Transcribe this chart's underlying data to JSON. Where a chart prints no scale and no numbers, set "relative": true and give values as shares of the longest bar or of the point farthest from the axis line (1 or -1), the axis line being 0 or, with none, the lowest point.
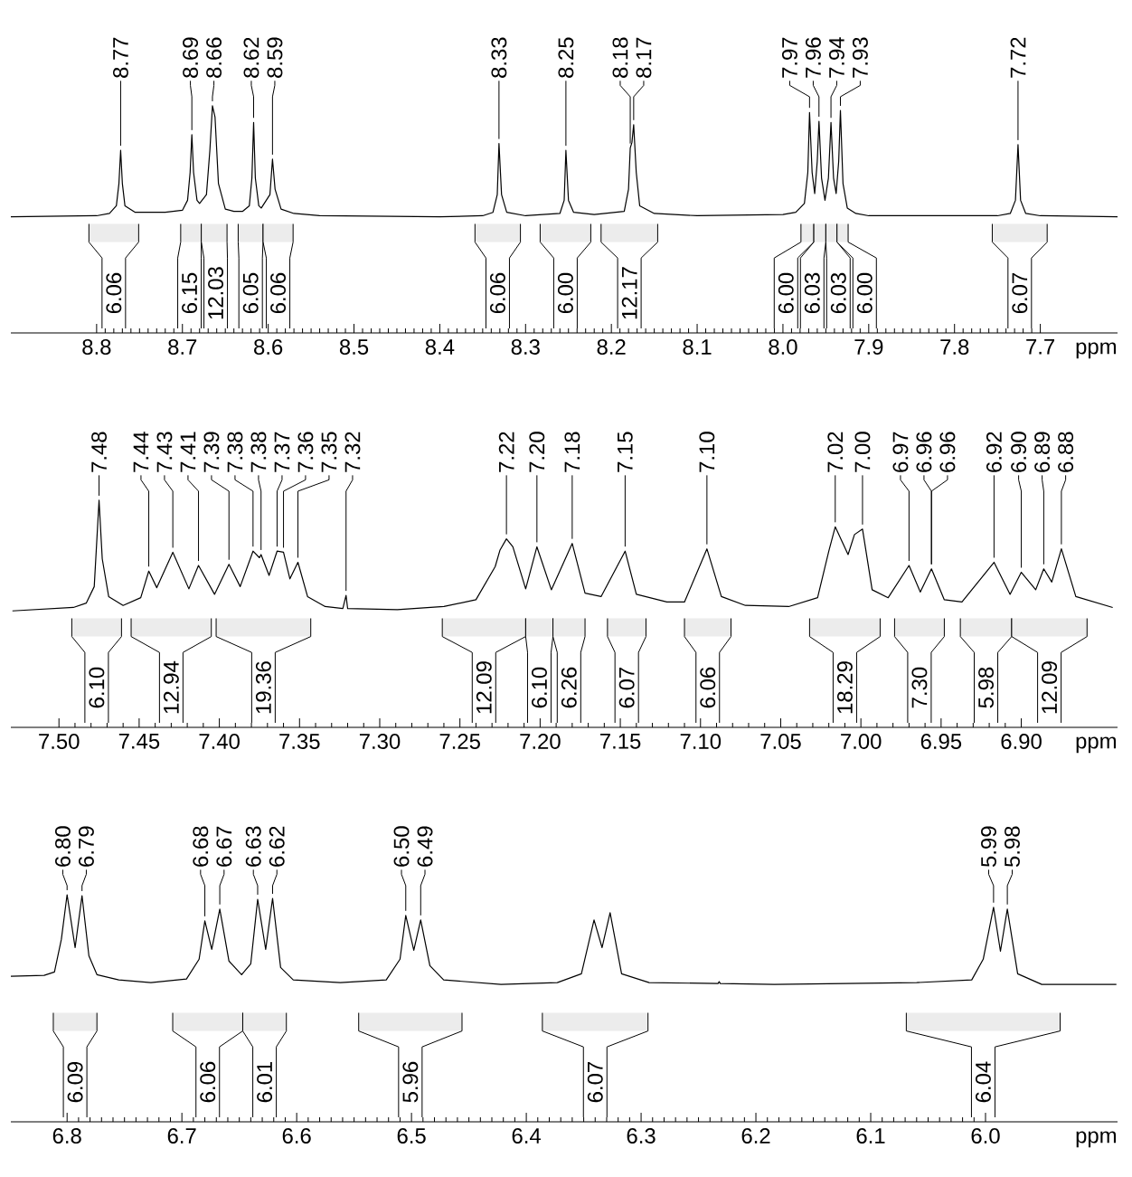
{
  "chart_data": [
    {
      "type": "line",
      "relative": true,
      "color": "#000000",
      "xlabel": "ppm",
      "xlim": [
        8.9,
        7.61
      ],
      "xticks": [
        8.8,
        8.7,
        8.6,
        8.5,
        8.4,
        8.3,
        8.2,
        8.1,
        {
          "value": 8,
          "label": "8.0"
        },
        7.9,
        7.8,
        7.7
      ],
      "x": [
        8.9,
        8.8,
        8.785,
        8.777,
        8.774,
        8.772,
        8.77,
        8.767,
        8.755,
        8.72,
        8.7,
        8.694,
        8.691,
        8.689,
        8.687,
        8.683,
        8.68,
        8.672,
        8.668,
        8.665,
        8.662,
        8.658,
        8.65,
        8.64,
        8.63,
        8.622,
        8.619,
        8.617,
        8.615,
        8.611,
        8.608,
        8.598,
        8.595,
        8.592,
        8.585,
        8.57,
        8.54,
        8.4,
        8.35,
        8.338,
        8.333,
        8.331,
        8.328,
        8.322,
        8.3,
        8.26,
        8.255,
        8.253,
        8.25,
        8.244,
        8.22,
        8.185,
        8.18,
        8.178,
        8.176,
        8.174,
        8.171,
        8.167,
        8.15,
        8.1,
        8.0,
        7.985,
        7.975,
        7.971,
        7.969,
        7.966,
        7.963,
        7.96,
        7.958,
        7.955,
        7.951,
        7.947,
        7.944,
        7.941,
        7.938,
        7.935,
        7.933,
        7.93,
        7.925,
        7.915,
        7.9,
        7.75,
        7.735,
        7.729,
        7.726,
        7.723,
        7.717,
        7.7,
        7.61
      ],
      "values": [
        0.511,
        0.516,
        0.526,
        0.56,
        0.658,
        0.804,
        0.658,
        0.56,
        0.531,
        0.531,
        0.54,
        0.584,
        0.707,
        0.873,
        0.707,
        0.584,
        0.57,
        0.609,
        0.804,
        1.0,
        0.951,
        0.658,
        0.545,
        0.535,
        0.535,
        0.56,
        0.682,
        0.927,
        0.682,
        0.56,
        0.55,
        0.609,
        0.765,
        0.633,
        0.545,
        0.526,
        0.516,
        0.511,
        0.516,
        0.531,
        0.609,
        0.834,
        0.609,
        0.531,
        0.516,
        0.526,
        0.584,
        0.804,
        0.584,
        0.531,
        0.521,
        0.535,
        0.633,
        0.814,
        0.839,
        0.917,
        0.707,
        0.56,
        0.526,
        0.516,
        0.521,
        0.531,
        0.57,
        0.707,
        0.971,
        0.707,
        0.614,
        0.756,
        0.932,
        0.682,
        0.584,
        0.682,
        0.927,
        0.682,
        0.614,
        0.756,
        0.98,
        0.658,
        0.55,
        0.526,
        0.516,
        0.516,
        0.526,
        0.584,
        0.829,
        0.584,
        0.526,
        0.516,
        0.511
      ],
      "annotations": [
        {
          "text": "8.77",
          "x": 8.772,
          "y": 0.804
        },
        {
          "text": "8.69",
          "x": 8.689,
          "y": 0.873
        },
        {
          "text": "8.66",
          "x": 8.665,
          "y": 1.0
        },
        {
          "text": "8.62",
          "x": 8.617,
          "y": 0.927
        },
        {
          "text": "8.59",
          "x": 8.595,
          "y": 0.765
        },
        {
          "text": "8.33",
          "x": 8.331,
          "y": 0.834
        },
        {
          "text": "8.25",
          "x": 8.253,
          "y": 0.804
        },
        {
          "text": "8.18",
          "x": 8.178,
          "y": 0.814
        },
        {
          "text": "8.17",
          "x": 8.174,
          "y": 0.917
        },
        {
          "text": "7.97",
          "x": 7.969,
          "y": 0.971
        },
        {
          "text": "7.96",
          "x": 7.958,
          "y": 0.932
        },
        {
          "text": "7.94",
          "x": 7.944,
          "y": 0.927
        },
        {
          "text": "7.93",
          "x": 7.933,
          "y": 0.98
        },
        {
          "text": "7.72",
          "x": 7.726,
          "y": 0.829
        }
      ],
      "bands": [
        {
          "axis": "x",
          "from": 8.809,
          "to": 8.751,
          "label": "6.06",
          "color": "#ececec"
        },
        {
          "axis": "x",
          "from": 8.702,
          "to": 8.678,
          "label": "6.15",
          "color": "#ececec"
        },
        {
          "axis": "x",
          "from": 8.678,
          "to": 8.648,
          "label": "12.03",
          "color": "#ececec"
        },
        {
          "axis": "x",
          "from": 8.635,
          "to": 8.606,
          "label": "6.05",
          "color": "#ececec"
        },
        {
          "axis": "x",
          "from": 8.606,
          "to": 8.571,
          "label": "6.06",
          "color": "#ececec"
        },
        {
          "axis": "x",
          "from": 8.359,
          "to": 8.306,
          "label": "6.06",
          "color": "#ececec"
        },
        {
          "axis": "x",
          "from": 8.283,
          "to": 8.224,
          "label": "6.00",
          "color": "#ececec"
        },
        {
          "axis": "x",
          "from": 8.212,
          "to": 8.146,
          "label": "12.17",
          "color": "#ececec"
        },
        {
          "axis": "x",
          "from": 7.979,
          "to": 7.964,
          "label": "6.00",
          "color": "#ececec"
        },
        {
          "axis": "x",
          "from": 7.964,
          "to": 7.95,
          "label": "6.03",
          "color": "#ececec"
        },
        {
          "axis": "x",
          "from": 7.95,
          "to": 7.937,
          "label": "6.03",
          "color": "#ececec"
        },
        {
          "axis": "x",
          "from": 7.937,
          "to": 7.924,
          "label": "6.00",
          "color": "#ececec"
        },
        {
          "axis": "x",
          "from": 7.756,
          "to": 7.692,
          "label": "6.07",
          "color": "#ececec"
        }
      ]
    },
    {
      "type": "line",
      "relative": true,
      "color": "#000000",
      "xlabel": "ppm",
      "xlim": [
        7.53,
        6.84
      ],
      "xticks": [
        {
          "value": 7.5,
          "label": "7.50"
        },
        7.45,
        {
          "value": 7.4,
          "label": "7.40"
        },
        7.35,
        {
          "value": 7.3,
          "label": "7.30"
        },
        7.25,
        {
          "value": 7.2,
          "label": "7.20"
        },
        7.15,
        {
          "value": 7.1,
          "label": "7.10"
        },
        7.05,
        {
          "value": 7,
          "label": "7.00"
        },
        6.95,
        {
          "value": 6.9,
          "label": "6.90"
        }
      ],
      "x": [
        7.529,
        7.491,
        7.483,
        7.478,
        7.475,
        7.473,
        7.469,
        7.46,
        7.449,
        7.444,
        7.439,
        7.429,
        7.419,
        7.413,
        7.403,
        7.394,
        7.387,
        7.379,
        7.375,
        7.374,
        7.369,
        7.364,
        7.36,
        7.356,
        7.351,
        7.345,
        7.334,
        7.323,
        7.321,
        7.32,
        7.289,
        7.26,
        7.24,
        7.228,
        7.225,
        7.221,
        7.217,
        7.209,
        7.202,
        7.193,
        7.18,
        7.172,
        7.162,
        7.147,
        7.14,
        7.121,
        7.11,
        7.096,
        7.087,
        7.072,
        7.045,
        7.027,
        7.02,
        7.016,
        7.008,
        7.004,
        6.999,
        6.993,
        6.983,
        6.97,
        6.963,
        6.956,
        6.948,
        6.937,
        6.917,
        6.907,
        6.9,
        6.891,
        6.886,
        6.881,
        6.875,
        6.866,
        6.843
      ],
      "values": [
        0.513,
        0.528,
        0.547,
        0.62,
        1.0,
        0.742,
        0.576,
        0.537,
        0.571,
        0.688,
        0.615,
        0.771,
        0.61,
        0.713,
        0.586,
        0.718,
        0.62,
        0.776,
        0.747,
        0.761,
        0.669,
        0.776,
        0.771,
        0.654,
        0.727,
        0.576,
        0.532,
        0.523,
        0.581,
        0.523,
        0.518,
        0.532,
        0.562,
        0.708,
        0.781,
        0.83,
        0.795,
        0.61,
        0.795,
        0.606,
        0.81,
        0.591,
        0.576,
        0.776,
        0.586,
        0.552,
        0.552,
        0.786,
        0.576,
        0.537,
        0.532,
        0.571,
        0.776,
        0.883,
        0.761,
        0.849,
        0.873,
        0.606,
        0.571,
        0.713,
        0.596,
        0.698,
        0.562,
        0.552,
        0.727,
        0.586,
        0.683,
        0.606,
        0.698,
        0.64,
        0.786,
        0.576,
        0.528
      ],
      "annotations": [
        {
          "text": "7.48",
          "x": 7.475,
          "y": 1.0
        },
        {
          "text": "7.44",
          "x": 7.444,
          "y": 0.688
        },
        {
          "text": "7.43",
          "x": 7.429,
          "y": 0.771
        },
        {
          "text": "7.41",
          "x": 7.413,
          "y": 0.713
        },
        {
          "text": "7.39",
          "x": 7.394,
          "y": 0.718
        },
        {
          "text": "7.38",
          "x": 7.379,
          "y": 0.776
        },
        {
          "text": "7.38",
          "x": 7.374,
          "y": 0.761
        },
        {
          "text": "7.37",
          "x": 7.364,
          "y": 0.776
        },
        {
          "text": "7.36",
          "x": 7.36,
          "y": 0.771
        },
        {
          "text": "7.35",
          "x": 7.351,
          "y": 0.727
        },
        {
          "text": "7.32",
          "x": 7.321,
          "y": 0.581
        },
        {
          "text": "7.22",
          "x": 7.221,
          "y": 0.83
        },
        {
          "text": "7.20",
          "x": 7.202,
          "y": 0.795
        },
        {
          "text": "7.18",
          "x": 7.18,
          "y": 0.81
        },
        {
          "text": "7.15",
          "x": 7.147,
          "y": 0.776
        },
        {
          "text": "7.10",
          "x": 7.096,
          "y": 0.786
        },
        {
          "text": "7.02",
          "x": 7.016,
          "y": 0.883
        },
        {
          "text": "7.00",
          "x": 6.999,
          "y": 0.873
        },
        {
          "text": "6.97",
          "x": 6.97,
          "y": 0.713
        },
        {
          "text": "6.96",
          "x": 6.956,
          "y": 0.698
        },
        {
          "text": "6.96",
          "x": 6.956,
          "y": 0.698
        },
        {
          "text": "6.92",
          "x": 6.917,
          "y": 0.727
        },
        {
          "text": "6.90",
          "x": 6.9,
          "y": 0.683
        },
        {
          "text": "6.89",
          "x": 6.886,
          "y": 0.698
        },
        {
          "text": "6.88",
          "x": 6.875,
          "y": 0.786
        }
      ],
      "bands": [
        {
          "axis": "x",
          "from": 7.492,
          "to": 7.461,
          "label": "6.10",
          "color": "#ececec"
        },
        {
          "axis": "x",
          "from": 7.455,
          "to": 7.405,
          "label": "12.94",
          "color": "#ececec"
        },
        {
          "axis": "x",
          "from": 7.402,
          "to": 7.343,
          "label": "19.36",
          "color": "#ececec"
        },
        {
          "axis": "x",
          "from": 7.261,
          "to": 7.209,
          "label": "12.09",
          "color": "#ececec"
        },
        {
          "axis": "x",
          "from": 7.209,
          "to": 7.192,
          "label": "6.10",
          "color": "#ececec"
        },
        {
          "axis": "x",
          "from": 7.192,
          "to": 7.172,
          "label": "6.26",
          "color": "#ececec"
        },
        {
          "axis": "x",
          "from": 7.158,
          "to": 7.134,
          "label": "6.07",
          "color": "#ececec"
        },
        {
          "axis": "x",
          "from": 7.11,
          "to": 7.081,
          "label": "6.06",
          "color": "#ececec"
        },
        {
          "axis": "x",
          "from": 7.032,
          "to": 6.988,
          "label": "18.29",
          "color": "#ececec"
        },
        {
          "axis": "x",
          "from": 6.979,
          "to": 6.948,
          "label": "7.30",
          "color": "#ececec"
        },
        {
          "axis": "x",
          "from": 6.938,
          "to": 6.906,
          "label": "5.98",
          "color": "#ececec"
        },
        {
          "axis": "x",
          "from": 6.906,
          "to": 6.859,
          "label": "12.09",
          "color": "#ececec"
        }
      ]
    },
    {
      "type": "line",
      "relative": true,
      "color": "#000000",
      "xlabel": "ppm",
      "xlim": [
        6.849,
        5.885
      ],
      "xticks": [
        6.8,
        6.7,
        6.6,
        6.5,
        6.4,
        6.3,
        6.2,
        6.1,
        {
          "value": 6,
          "label": "6.0"
        }
      ],
      "x": [
        6.849,
        6.82,
        6.811,
        6.805,
        6.8,
        6.793,
        6.787,
        6.781,
        6.774,
        6.755,
        6.727,
        6.696,
        6.685,
        6.68,
        6.674,
        6.667,
        6.659,
        6.648,
        6.64,
        6.634,
        6.627,
        6.621,
        6.614,
        6.603,
        6.562,
        6.522,
        6.51,
        6.505,
        6.498,
        6.492,
        6.484,
        6.472,
        6.422,
        6.373,
        6.352,
        6.341,
        6.334,
        6.327,
        6.317,
        6.293,
        6.233,
        6.232,
        6.231,
        6.184,
        6.06,
        6.012,
        6.002,
        5.993,
        5.987,
        5.981,
        5.972,
        5.951,
        5.886
      ],
      "values": [
        0.641,
        0.645,
        0.66,
        0.803,
        1.0,
        0.767,
        0.996,
        0.731,
        0.648,
        0.625,
        0.613,
        0.629,
        0.716,
        0.885,
        0.759,
        0.937,
        0.708,
        0.648,
        0.696,
        0.98,
        0.759,
        0.984,
        0.68,
        0.625,
        0.613,
        0.625,
        0.716,
        0.909,
        0.755,
        0.889,
        0.688,
        0.625,
        0.605,
        0.613,
        0.652,
        0.889,
        0.767,
        0.921,
        0.652,
        0.613,
        0.609,
        0.617,
        0.609,
        0.605,
        0.613,
        0.625,
        0.716,
        0.945,
        0.751,
        0.937,
        0.652,
        0.605,
        0.605
      ],
      "annotations": [
        {
          "text": "6.80",
          "x": 6.8,
          "y": 1.0
        },
        {
          "text": "6.79",
          "x": 6.787,
          "y": 0.996
        },
        {
          "text": "6.68",
          "x": 6.68,
          "y": 0.885
        },
        {
          "text": "6.67",
          "x": 6.667,
          "y": 0.937
        },
        {
          "text": "6.63",
          "x": 6.634,
          "y": 0.98
        },
        {
          "text": "6.62",
          "x": 6.621,
          "y": 0.984
        },
        {
          "text": "6.50",
          "x": 6.505,
          "y": 0.909
        },
        {
          "text": "6.49",
          "x": 6.492,
          "y": 0.889
        },
        {
          "text": "5.99",
          "x": 5.993,
          "y": 0.945
        },
        {
          "text": "5.98",
          "x": 5.981,
          "y": 0.937
        }
      ],
      "bands": [
        {
          "axis": "x",
          "from": 6.812,
          "to": 6.774,
          "label": "6.09",
          "color": "#ececec"
        },
        {
          "axis": "x",
          "from": 6.708,
          "to": 6.647,
          "label": "6.06",
          "color": "#ececec"
        },
        {
          "axis": "x",
          "from": 6.647,
          "to": 6.609,
          "label": "6.01",
          "color": "#ececec"
        },
        {
          "axis": "x",
          "from": 6.546,
          "to": 6.456,
          "label": "5.96",
          "color": "#ececec"
        },
        {
          "axis": "x",
          "from": 6.386,
          "to": 6.294,
          "label": "6.07",
          "color": "#ececec"
        },
        {
          "axis": "x",
          "from": 6.069,
          "to": 5.935,
          "label": "6.04",
          "color": "#ececec"
        }
      ]
    }
  ]
}
